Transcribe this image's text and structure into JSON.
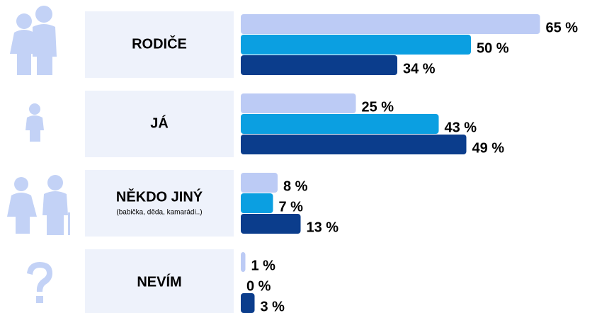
{
  "chart_data": {
    "type": "bar",
    "orientation": "horizontal",
    "categories": [
      "RODIČE",
      "JÁ",
      "NĚKDO JINÝ",
      "NEVÍM"
    ],
    "category_notes": [
      null,
      null,
      "(babička, děda, kamarádi..)",
      null
    ],
    "series": [
      {
        "color": "#bccbf5",
        "values": [
          65,
          25,
          8,
          1
        ],
        "value_labels": [
          "65 %",
          "25 %",
          "8 %",
          "1 %"
        ]
      },
      {
        "color": "#0b9fe1",
        "values": [
          50,
          43,
          7,
          0
        ],
        "value_labels": [
          "50 %",
          "43 %",
          "7 %",
          "0 %"
        ]
      },
      {
        "color": "#0b3d8c",
        "values": [
          34,
          49,
          13,
          3
        ],
        "value_labels": [
          "34 %",
          "49 %",
          "13 %",
          "3 %"
        ]
      }
    ]
  }
}
